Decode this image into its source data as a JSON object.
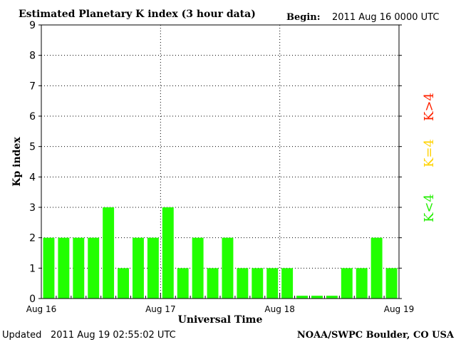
{
  "header": {
    "title": "Estimated Planetary K index (3 hour data)",
    "begin_label": "Begin:",
    "begin_value": "2011 Aug 16 0000 UTC"
  },
  "footer": {
    "updated_label": "Updated",
    "updated_value": "2011 Aug 19 02:55:02 UTC",
    "source": "NOAA/SWPC Boulder, CO USA"
  },
  "legend": {
    "high": {
      "text": "K>4",
      "color": "#ff2200"
    },
    "equal": {
      "text": "K=4",
      "color": "#ffd200"
    },
    "low": {
      "text": "K<4",
      "color": "#22ee00"
    }
  },
  "chart_data": {
    "type": "bar",
    "title": "Estimated Planetary K index (3 hour data)",
    "xlabel": "Universal Time",
    "ylabel": "Kp index",
    "ylim": [
      0,
      9
    ],
    "yticks": [
      0,
      1,
      2,
      3,
      4,
      5,
      6,
      7,
      8,
      9
    ],
    "x_tick_labels": [
      "Aug 16",
      "Aug 17",
      "Aug 18",
      "Aug 19"
    ],
    "interval_hours": 3,
    "grid": true,
    "bar_color": "#22ff00",
    "values": [
      2,
      2,
      2,
      2,
      3,
      1,
      2,
      2,
      3,
      1,
      2,
      1,
      2,
      1,
      1,
      1,
      1,
      0,
      0,
      0,
      1,
      1,
      2,
      1
    ]
  }
}
